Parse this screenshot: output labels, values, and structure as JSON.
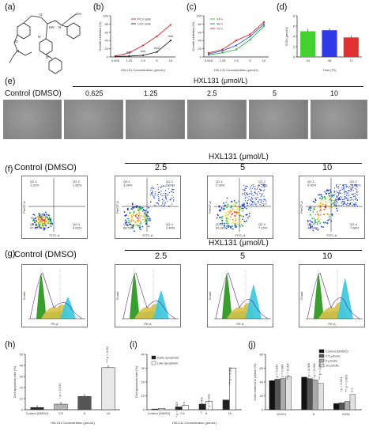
{
  "panel_labels": [
    "(a)",
    "(b)",
    "(c)",
    "(d)",
    "(e)",
    "(f)",
    "(g)",
    "(h)",
    "(i)",
    "(j)"
  ],
  "group_header": "HXL131 (μmol/L)",
  "control_label": "Control (DMSO)",
  "e_doses": [
    "0.625",
    "1.25",
    "2.5",
    "5",
    "10"
  ],
  "fg_doses": [
    "2.5",
    "5",
    "10"
  ],
  "facs_quadrants": [
    [
      "Q2-1 1.32%",
      "Q2-2 1.66%",
      "Q2-3 97.10%",
      "Q2-4 0.00%"
    ],
    [
      "Q2-1 3.28%",
      "Q2-2 5.67%",
      "Q2-3 88.56%",
      "Q2-4 2.49%"
    ],
    [
      "Q2-1 2.93%",
      "Q2-2 6.54%",
      "Q2-3 83.38%",
      "Q2-4 7.15%"
    ],
    [
      "Q2-1 5.06%",
      "Q2-2 37.48%",
      "Q2-3 49.80%",
      "Q2-4 7.66%"
    ]
  ],
  "axis_text": {
    "fitc": "FITC-A",
    "pi": "PerCP-A",
    "pe": "PE-A",
    "count": "Count"
  },
  "chart_data": [
    {
      "type": "line",
      "panel": "b",
      "xlabel": "HXL131 Concentration (μmol/L)",
      "ylabel": "Growth inhibition (%)",
      "categories": [
        "0.625",
        "1.25",
        "2.5",
        "5",
        "10"
      ],
      "ylim": [
        0,
        100
      ],
      "yticks": [
        "0",
        "20",
        "40",
        "60",
        "80",
        "100"
      ],
      "series": [
        {
          "name": "PC3 cells",
          "color": "#e0242e",
          "values": [
            2,
            10,
            28,
            50,
            78
          ]
        },
        {
          "name": "LO2 cells",
          "color": "#222222",
          "values": [
            1,
            2,
            4,
            12,
            40
          ]
        }
      ],
      "annotations": [
        "###",
        "###",
        "###",
        "###"
      ]
    },
    {
      "type": "line",
      "panel": "c",
      "xlabel": "HXL131 Concentration (μmol/L)",
      "ylabel": "Growth inhibition (%)",
      "categories": [
        "0.625",
        "1.25",
        "2.5",
        "5",
        "10"
      ],
      "ylim": [
        0,
        100
      ],
      "yticks": [
        "0",
        "20",
        "40",
        "60",
        "80",
        "100"
      ],
      "series": [
        {
          "name": "24 h",
          "color": "#2bb24c",
          "values": [
            5,
            10,
            18,
            42,
            75
          ]
        },
        {
          "name": "48 h",
          "color": "#2a5bd7",
          "values": [
            7,
            15,
            28,
            50,
            80
          ]
        },
        {
          "name": "72 h",
          "color": "#e0242e",
          "values": [
            10,
            18,
            40,
            55,
            85
          ]
        }
      ]
    },
    {
      "type": "bar",
      "panel": "d",
      "xlabel": "Time (Th)",
      "ylabel": "IC50 (μmol/L)",
      "categories": [
        "24",
        "48",
        "72"
      ],
      "ylim": [
        0,
        8
      ],
      "yticks": [
        "0",
        "2",
        "4",
        "6",
        "8"
      ],
      "values": [
        5.0,
        5.2,
        3.8
      ],
      "colors": [
        "#43d130",
        "#2f3be8",
        "#e33030"
      ]
    },
    {
      "type": "bar",
      "panel": "h",
      "xlabel": "HXL131 Concentration (μmol/L)",
      "ylabel": "Cell apoptosis rate (%)",
      "categories": [
        "Control (DMSO)",
        "2.5",
        "5",
        "10"
      ],
      "ylim": [
        0,
        50
      ],
      "yticks": [
        "0",
        "10",
        "20",
        "30",
        "40",
        "50"
      ],
      "values": [
        2,
        5,
        12,
        38
      ],
      "colors": [
        "#2b2b2b",
        "#b5b5b5",
        "#555555",
        "#e8e8e8"
      ],
      "annotations": [
        "* p = 0.012",
        "*** p < 0.001"
      ]
    },
    {
      "type": "bar",
      "panel": "i",
      "xlabel": "HXL131 Concentration (μmol/L)",
      "ylabel": "Cell apoptosis rate (%)",
      "categories": [
        "Control (DMSO)",
        "2.5",
        "5",
        "10"
      ],
      "ylim": [
        0,
        40
      ],
      "yticks": [
        "0",
        "10",
        "20",
        "30",
        "40"
      ],
      "series": [
        {
          "name": "Early apoptosis",
          "color": "#222222",
          "values": [
            0.5,
            2,
            4,
            7
          ]
        },
        {
          "name": "Late apoptosis",
          "color": "#ffffff",
          "values": [
            1,
            3,
            6,
            30
          ]
        }
      ],
      "annotations": [
        "* p = 0.015",
        "n.s",
        "** p = 0.001",
        "* p = 0.011",
        "*** p < 0.001"
      ]
    },
    {
      "type": "bar",
      "panel": "j",
      "xlabel": "",
      "ylabel": "Cells entered in phase (%)",
      "categories": [
        "G0/G1",
        "S",
        "G2/M"
      ],
      "ylim": [
        0,
        80
      ],
      "yticks": [
        "0",
        "20",
        "40",
        "60",
        "80"
      ],
      "series": [
        {
          "name": "Control (DMSO)",
          "color": "#111111",
          "values": [
            42,
            47,
            9
          ]
        },
        {
          "name": "2.5 μmol/L",
          "color": "#555555",
          "values": [
            44,
            45,
            10
          ]
        },
        {
          "name": "5 μmol/L",
          "color": "#aaaaaa",
          "values": [
            45,
            43,
            12
          ]
        },
        {
          "name": "10 μmol/L",
          "color": "#e0e0e0",
          "values": [
            48,
            38,
            22
          ]
        }
      ],
      "annotations": [
        "* p = 0.032",
        "* p = 0.004",
        "** p = 0.007",
        "** p = 0.006",
        "** p = 0.001",
        "*** p < 0.001",
        "* p = 0.024",
        "*** p < 0.001",
        "n.s"
      ]
    }
  ]
}
